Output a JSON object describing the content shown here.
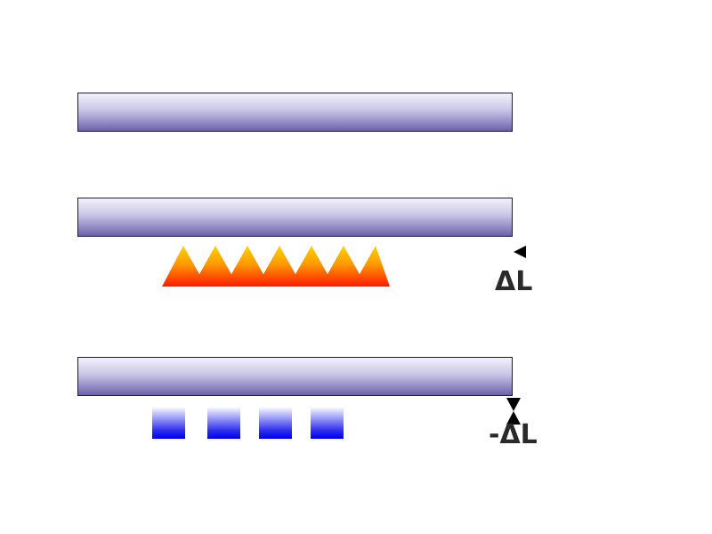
{
  "diagram": {
    "expansion_label": "ΔL",
    "contraction_label": "-ΔL",
    "colors": {
      "rod_light": "#f4f2fc",
      "rod_dark": "#6a62a6",
      "rod_border": "#1a1a40",
      "flame_top": "#ffd400",
      "flame_bottom": "#ff1a00",
      "ice_light": "#ffffff",
      "ice_dark": "#0000e6",
      "label_color": "#2a2a2a"
    },
    "heat_source_icon": "flames-icon",
    "cold_source_icon": "ice-cube-icon",
    "ice_cube_count": 4,
    "flame_peak_count": 7
  }
}
